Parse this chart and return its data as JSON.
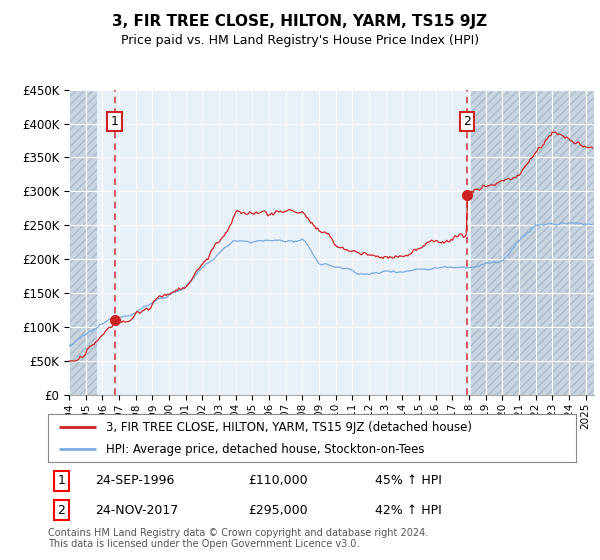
{
  "title": "3, FIR TREE CLOSE, HILTON, YARM, TS15 9JZ",
  "subtitle": "Price paid vs. HM Land Registry's House Price Index (HPI)",
  "legend_line1": "3, FIR TREE CLOSE, HILTON, YARM, TS15 9JZ (detached house)",
  "legend_line2": "HPI: Average price, detached house, Stockton-on-Tees",
  "annotation1": {
    "num": "1",
    "date": "24-SEP-1996",
    "price": "£110,000",
    "hpi": "45% ↑ HPI",
    "x": 1996.73
  },
  "annotation2": {
    "num": "2",
    "date": "24-NOV-2017",
    "price": "£295,000",
    "hpi": "42% ↑ HPI",
    "x": 2017.9
  },
  "sale1_x": 1996.73,
  "sale1_y": 110000,
  "sale2_x": 2017.9,
  "sale2_y": 295000,
  "hpi_color": "#7aabe0",
  "price_color": "#cc2222",
  "background_plot": "#e8f0f8",
  "hatch_color": "#c8d4e0",
  "footer": "Contains HM Land Registry data © Crown copyright and database right 2024.\nThis data is licensed under the Open Government Licence v3.0.",
  "ylim": [
    0,
    450000
  ],
  "xlim_start": 1994.0,
  "xlim_end": 2025.5,
  "hatch_left_end": 1995.7,
  "hatch_right_start": 2018.1
}
